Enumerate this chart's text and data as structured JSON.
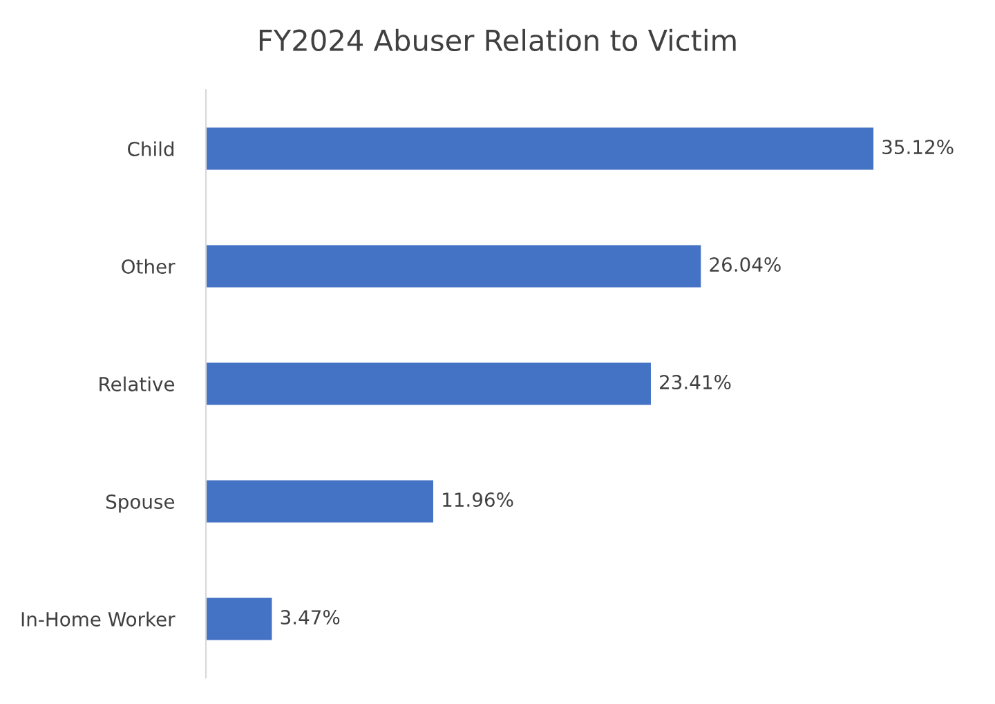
{
  "chart_data": {
    "type": "bar",
    "orientation": "horizontal",
    "title": "FY2024 Abuser Relation to Victim",
    "categories": [
      "Child",
      "Other",
      "Relative",
      "Spouse",
      "In-Home Worker"
    ],
    "values": [
      35.12,
      26.04,
      23.41,
      11.96,
      3.47
    ],
    "value_labels": [
      "35.12%",
      "26.04%",
      "23.41%",
      "11.96%",
      "3.47%"
    ],
    "color": "#4472c4"
  }
}
